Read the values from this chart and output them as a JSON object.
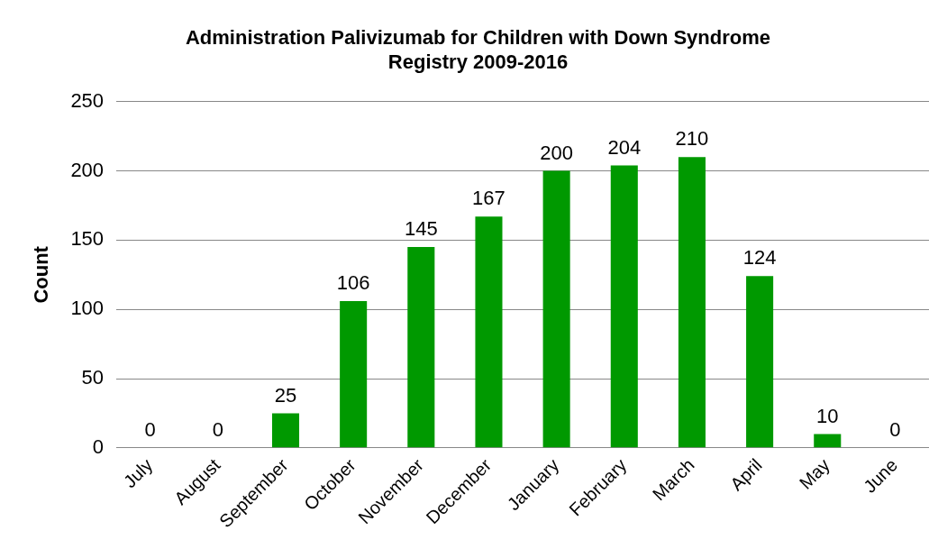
{
  "chart_data": {
    "type": "bar",
    "title": "Administration Palivizumab for Children with Down Syndrome\nRegistry 2009-2016",
    "ylabel": "Count",
    "categories": [
      "July",
      "August",
      "September",
      "October",
      "November",
      "December",
      "January",
      "February",
      "March",
      "April",
      "May",
      "June"
    ],
    "values": [
      0,
      0,
      25,
      106,
      145,
      167,
      200,
      204,
      210,
      124,
      10,
      0
    ],
    "color": "#009900",
    "ylim": [
      0,
      250
    ],
    "yticks": [
      0,
      50,
      100,
      150,
      200,
      250
    ],
    "grid": "y",
    "data_labels": true
  }
}
